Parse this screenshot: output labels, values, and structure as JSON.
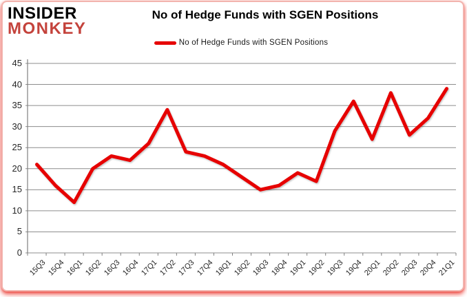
{
  "header": {
    "logo_line1": "INSIDER",
    "logo_line2": "MONKEY",
    "title": "No of Hedge Funds with SGEN Positions"
  },
  "legend": {
    "label": "No of Hedge Funds with SGEN Positions"
  },
  "colors": {
    "series_line": "#e60000",
    "logo_red": "#c4433c",
    "grid": "#8c8c8c",
    "axis": "#7f7f7f",
    "text": "#262626",
    "frame_border": "#f2b3ad",
    "frame_glow": "#e81e14"
  },
  "chart_data": {
    "type": "line",
    "title": "No of Hedge Funds with SGEN Positions",
    "categories": [
      "15Q3",
      "15Q4",
      "16Q1",
      "16Q2",
      "16Q3",
      "16Q4",
      "17Q1",
      "17Q2",
      "17Q3",
      "17Q4",
      "18Q1",
      "18Q2",
      "18Q3",
      "18Q4",
      "19Q1",
      "19Q2",
      "19Q3",
      "19Q4",
      "20Q1",
      "20Q2",
      "20Q3",
      "20Q4",
      "21Q1"
    ],
    "series": [
      {
        "name": "No of Hedge Funds with SGEN Positions",
        "values": [
          21,
          16,
          12,
          20,
          23,
          22,
          26,
          34,
          24,
          23,
          21,
          18,
          15,
          16,
          19,
          17,
          29,
          36,
          27,
          38,
          28,
          32,
          39
        ]
      }
    ],
    "xlabel": "",
    "ylabel": "",
    "ylim": [
      0,
      45
    ],
    "ytick_step": 5,
    "grid": "horizontal",
    "legend_position": "top"
  }
}
